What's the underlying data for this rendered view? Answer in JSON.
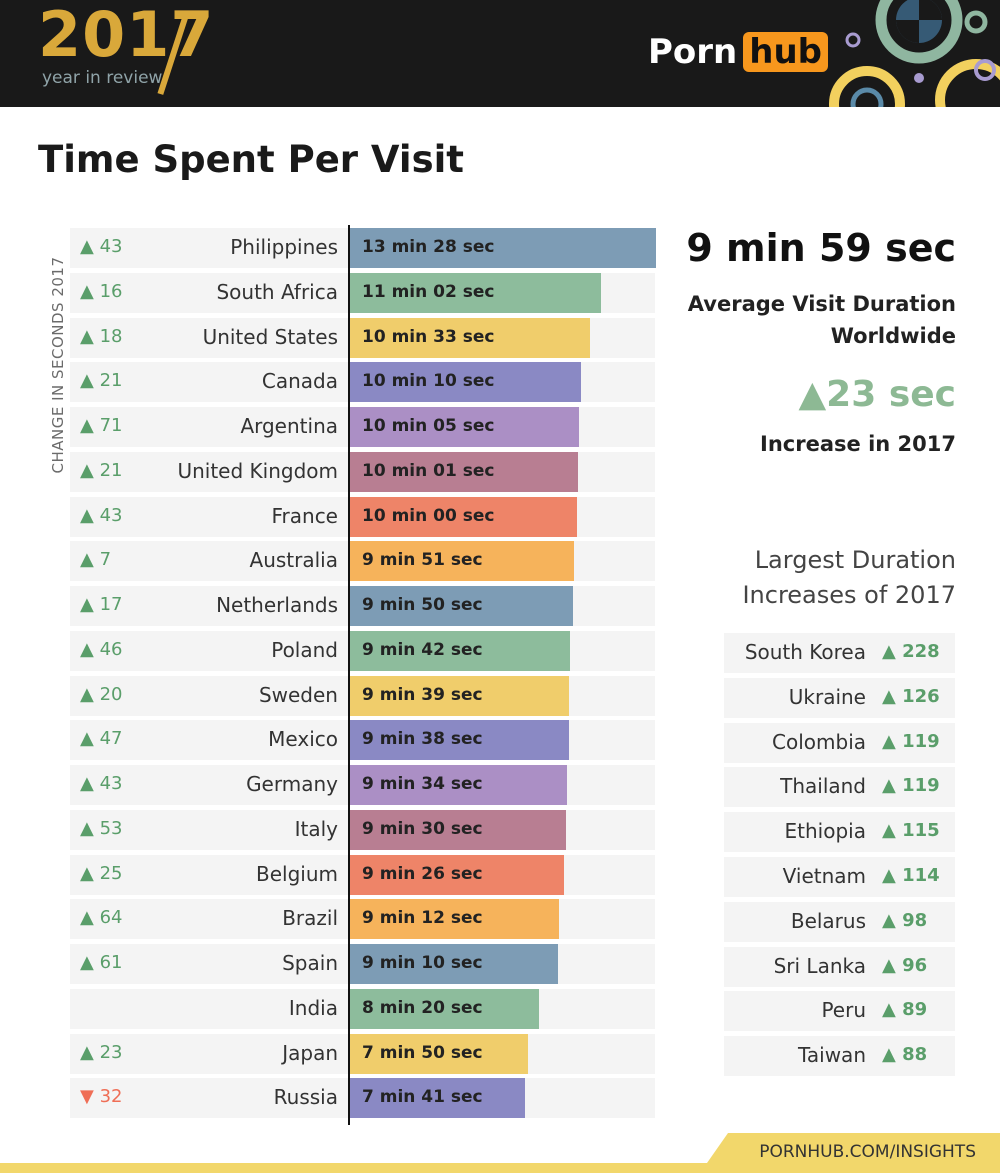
{
  "header": {
    "year": "2017",
    "subtitle": "year in review",
    "brand_left": "Porn",
    "brand_right": "hub"
  },
  "title": "Time Spent Per Visit",
  "side_label": "CHANGE IN SECONDS 2017",
  "colors": {
    "blue": "#7d9cb5",
    "green": "#8dbc9c",
    "yellow": "#f0cd6b",
    "indigo": "#8a89c4",
    "purple": "#ab8fc5",
    "mauve": "#b87e92",
    "salmon": "#ee8468",
    "orange": "#f6b35b",
    "up": "#5a9e6a",
    "down": "#ef6e56"
  },
  "chart_data": {
    "type": "bar",
    "orientation": "horizontal",
    "title": "Time Spent Per Visit",
    "unit": "seconds",
    "categories": [
      "Philippines",
      "South Africa",
      "United States",
      "Canada",
      "Argentina",
      "United Kingdom",
      "France",
      "Australia",
      "Netherlands",
      "Poland",
      "Sweden",
      "Mexico",
      "Germany",
      "Italy",
      "Belgium",
      "Brazil",
      "Spain",
      "India",
      "Japan",
      "Russia"
    ],
    "values": [
      808,
      662,
      633,
      610,
      605,
      601,
      600,
      591,
      590,
      582,
      579,
      578,
      574,
      570,
      566,
      552,
      550,
      500,
      470,
      461
    ],
    "value_labels": [
      "13 min 28 sec",
      "11 min 02 sec",
      "10 min 33 sec",
      "10 min 10 sec",
      "10 min 05 sec",
      "10 min 01 sec",
      "10 min 00 sec",
      "9 min 51 sec",
      "9 min 50 sec",
      "9 min 42 sec",
      "9 min 39 sec",
      "9 min 38 sec",
      "9 min 34 sec",
      "9 min 30 sec",
      "9 min 26 sec",
      "9 min 12 sec",
      "9 min 10 sec",
      "8 min 20 sec",
      "7 min 50 sec",
      "7 min 41 sec"
    ],
    "changes": [
      "▲ 43",
      "▲ 16",
      "▲ 18",
      "▲ 21",
      "▲ 71",
      "▲ 21",
      "▲ 43",
      "▲ 7",
      "▲ 17",
      "▲ 46",
      "▲ 20",
      "▲ 47",
      "▲ 43",
      "▲ 53",
      "▲ 25",
      "▲ 64",
      "▲ 61",
      "",
      "▲ 23",
      "▼ 32"
    ],
    "change_dirs": [
      "up",
      "up",
      "up",
      "up",
      "up",
      "up",
      "up",
      "up",
      "up",
      "up",
      "up",
      "up",
      "up",
      "up",
      "up",
      "up",
      "up",
      "none",
      "up",
      "down"
    ],
    "bar_colors": [
      "blue",
      "green",
      "yellow",
      "indigo",
      "purple",
      "mauve",
      "salmon",
      "orange",
      "blue",
      "green",
      "yellow",
      "indigo",
      "purple",
      "mauve",
      "salmon",
      "orange",
      "blue",
      "green",
      "yellow",
      "indigo"
    ],
    "xlim": [
      0,
      808
    ],
    "grid": false,
    "legend": "none"
  },
  "summary": {
    "avg_value": "9 min 59 sec",
    "avg_label": "Average Visit Duration Worldwide",
    "increase_value": "▲23 sec",
    "increase_label": "Increase in 2017"
  },
  "largest_increases": {
    "title": "Largest Duration Increases of 2017",
    "items": [
      {
        "country": "South Korea",
        "value": "▲ 228"
      },
      {
        "country": "Ukraine",
        "value": "▲ 126"
      },
      {
        "country": "Colombia",
        "value": "▲ 119"
      },
      {
        "country": "Thailand",
        "value": "▲ 119"
      },
      {
        "country": "Ethiopia",
        "value": "▲ 115"
      },
      {
        "country": "Vietnam",
        "value": "▲ 114"
      },
      {
        "country": "Belarus",
        "value": "▲ 98"
      },
      {
        "country": "Sri Lanka",
        "value": "▲ 96"
      },
      {
        "country": "Peru",
        "value": "▲ 89"
      },
      {
        "country": "Taiwan",
        "value": "▲ 88"
      }
    ]
  },
  "footer": {
    "url": "PORNHUB.COM/INSIGHTS"
  }
}
